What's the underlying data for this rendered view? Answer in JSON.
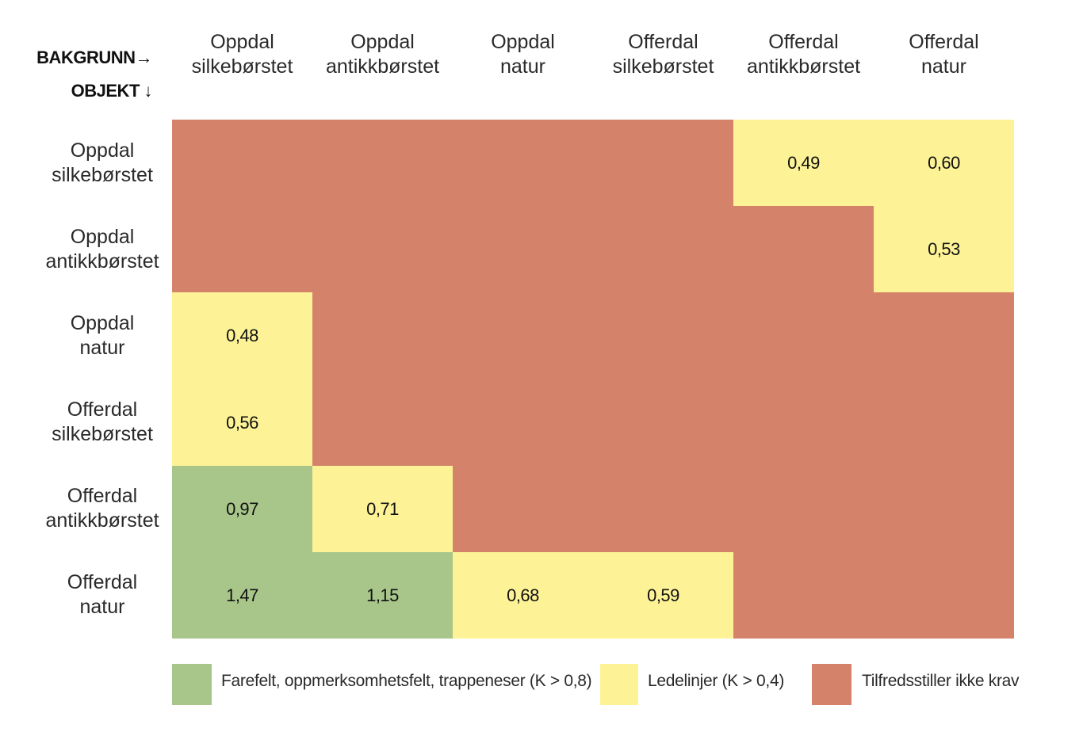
{
  "axis_labels": {
    "background": "BAKGRUNN→",
    "object": "OBJEKT ↓"
  },
  "colors": {
    "green": "#a8c68a",
    "yellow": "#fdf396",
    "red": "#d4836a"
  },
  "chart_data": {
    "type": "heatmap",
    "columns": [
      [
        "Oppdal",
        "silkebørstet"
      ],
      [
        "Oppdal",
        "antikkbørstet"
      ],
      [
        "Oppdal",
        "natur"
      ],
      [
        "Offerdal",
        "silkebørstet"
      ],
      [
        "Offerdal",
        "antikkbørstet"
      ],
      [
        "Offerdal",
        "natur"
      ]
    ],
    "rows": [
      [
        "Oppdal",
        "silkebørstet"
      ],
      [
        "Oppdal",
        "antikkbørstet"
      ],
      [
        "Oppdal",
        "natur"
      ],
      [
        "Offerdal",
        "silkebørstet"
      ],
      [
        "Offerdal",
        "antikkbørstet"
      ],
      [
        "Offerdal",
        "natur"
      ]
    ],
    "categories": [
      [
        "red",
        "red",
        "red",
        "red",
        "yellow",
        "yellow"
      ],
      [
        "red",
        "red",
        "red",
        "red",
        "red",
        "yellow"
      ],
      [
        "yellow",
        "red",
        "red",
        "red",
        "red",
        "red"
      ],
      [
        "yellow",
        "red",
        "red",
        "red",
        "red",
        "red"
      ],
      [
        "green",
        "yellow",
        "red",
        "red",
        "red",
        "red"
      ],
      [
        "green",
        "green",
        "yellow",
        "yellow",
        "red",
        "red"
      ]
    ],
    "values": [
      [
        "",
        "",
        "",
        "",
        "0,49",
        "0,60"
      ],
      [
        "",
        "",
        "",
        "",
        "",
        "0,53"
      ],
      [
        "0,48",
        "",
        "",
        "",
        "",
        ""
      ],
      [
        "0,56",
        "",
        "",
        "",
        "",
        ""
      ],
      [
        "0,97",
        "0,71",
        "",
        "",
        "",
        ""
      ],
      [
        "1,47",
        "1,15",
        "0,68",
        "0,59",
        "",
        ""
      ]
    ],
    "legend": [
      {
        "key": "green",
        "label": "Farefelt, oppmerksomhetsfelt, trappeneser (K > 0,8)"
      },
      {
        "key": "yellow",
        "label": "Ledelinjer (K > 0,4)"
      },
      {
        "key": "red",
        "label": "Tilfredsstiller ikke krav"
      }
    ]
  }
}
